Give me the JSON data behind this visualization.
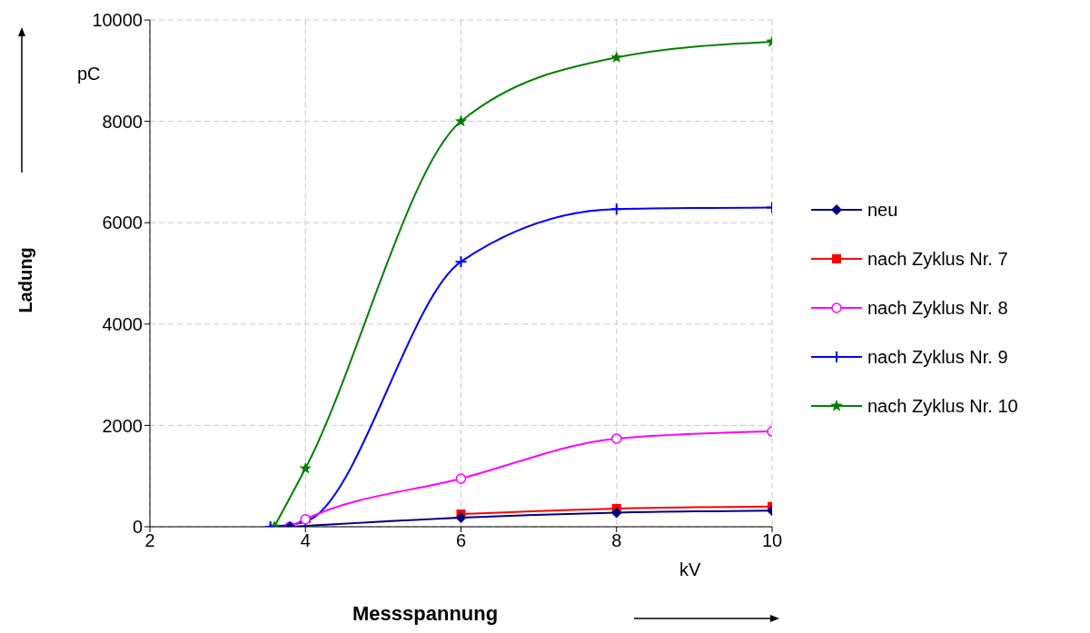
{
  "chart_data": {
    "type": "line",
    "xlabel": "Messspannung",
    "ylabel": "Ladung",
    "annotations": [
      "pC",
      "kV"
    ],
    "xlim": [
      2,
      10
    ],
    "xticks": [
      2,
      4,
      6,
      8,
      10
    ],
    "ylim": [
      0,
      10000
    ],
    "yticks": [
      0,
      2000,
      4000,
      6000,
      8000,
      10000
    ],
    "grid": true,
    "legend": "right",
    "line_style": "solid",
    "series": [
      {
        "name": "neu",
        "color": "#000080",
        "marker": "diamond",
        "x": [
          3.8,
          6,
          8,
          10
        ],
        "values": [
          0,
          180,
          280,
          320
        ]
      },
      {
        "name": "nach Zyklus Nr. 7",
        "color": "#ff0000",
        "marker": "square",
        "x": [
          6,
          8,
          10
        ],
        "values": [
          250,
          360,
          400
        ]
      },
      {
        "name": "nach Zyklus Nr. 8",
        "color": "#ff00ff",
        "marker": "circle",
        "x": [
          3.8,
          4,
          6,
          8,
          10
        ],
        "values": [
          0,
          150,
          950,
          1740,
          1880
        ]
      },
      {
        "name": "nach Zyklus Nr. 9",
        "color": "#0000ff",
        "marker": "cross",
        "x": [
          3.55,
          4,
          6,
          8,
          10
        ],
        "values": [
          0,
          100,
          5230,
          6270,
          6300
        ]
      },
      {
        "name": "nach Zyklus Nr. 10",
        "color": "#008000",
        "marker": "star",
        "x": [
          3.6,
          4,
          6,
          8,
          10
        ],
        "values": [
          0,
          1150,
          8000,
          9260,
          9570
        ]
      }
    ]
  }
}
